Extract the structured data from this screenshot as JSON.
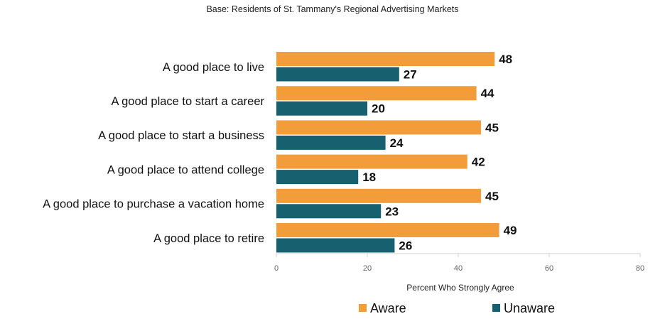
{
  "chart_data": {
    "type": "bar",
    "orientation": "horizontal",
    "subtitle": "Base: Residents of St. Tammany's Regional Advertising Markets",
    "categories": [
      "A good place to live",
      "A good place to start a career",
      "A good place to start a business",
      "A good place to attend college",
      "A good place to purchase a vacation home",
      "A good place to retire"
    ],
    "series": [
      {
        "name": "Aware",
        "color": "#F39C3A",
        "values": [
          48,
          44,
          45,
          42,
          45,
          49
        ]
      },
      {
        "name": "Unaware",
        "color": "#17606F",
        "values": [
          27,
          20,
          24,
          18,
          23,
          26
        ]
      }
    ],
    "xlabel": "Percent Who Strongly Agree",
    "xlim": [
      0,
      80
    ],
    "xticks": [
      0,
      20,
      40,
      60,
      80
    ],
    "grid": false,
    "legend_position": "bottom"
  }
}
